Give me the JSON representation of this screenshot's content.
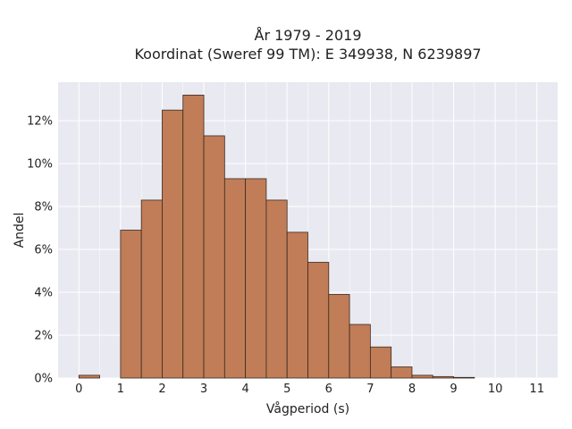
{
  "chart_data": {
    "type": "bar",
    "title": [
      "År 1979 - 2019",
      "Koordinat (Sweref 99 TM): E 349938, N 6239897"
    ],
    "xlabel": "Vågperiod (s)",
    "ylabel": "Andel",
    "xlim": [
      -0.5,
      11.5
    ],
    "ylim": [
      0,
      0.138
    ],
    "xticks": [
      0,
      1,
      2,
      3,
      4,
      5,
      6,
      7,
      8,
      9,
      10,
      11
    ],
    "yticks": [
      0,
      0.02,
      0.04,
      0.06,
      0.08,
      0.1,
      0.12
    ],
    "ytick_labels": [
      "0%",
      "2%",
      "4%",
      "6%",
      "8%",
      "10%",
      "12%"
    ],
    "bin_width": 0.5,
    "bins": [
      {
        "x0": 0.0,
        "value": 0.0013
      },
      {
        "x0": 1.0,
        "value": 0.069
      },
      {
        "x0": 1.5,
        "value": 0.083
      },
      {
        "x0": 2.0,
        "value": 0.125
      },
      {
        "x0": 2.5,
        "value": 0.132
      },
      {
        "x0": 3.0,
        "value": 0.113
      },
      {
        "x0": 3.5,
        "value": 0.093
      },
      {
        "x0": 4.0,
        "value": 0.093
      },
      {
        "x0": 4.5,
        "value": 0.083
      },
      {
        "x0": 5.0,
        "value": 0.068
      },
      {
        "x0": 5.5,
        "value": 0.054
      },
      {
        "x0": 6.0,
        "value": 0.039
      },
      {
        "x0": 6.5,
        "value": 0.025
      },
      {
        "x0": 7.0,
        "value": 0.0145
      },
      {
        "x0": 7.5,
        "value": 0.0052
      },
      {
        "x0": 8.0,
        "value": 0.0013
      },
      {
        "x0": 8.5,
        "value": 0.0007
      },
      {
        "x0": 9.0,
        "value": 0.0003
      }
    ],
    "grid": true,
    "colors": {
      "bar_fill": "#c07d57",
      "bar_edge": "#3a2a20",
      "plot_background": "#e9e9f1",
      "grid": "#ffffff"
    }
  }
}
